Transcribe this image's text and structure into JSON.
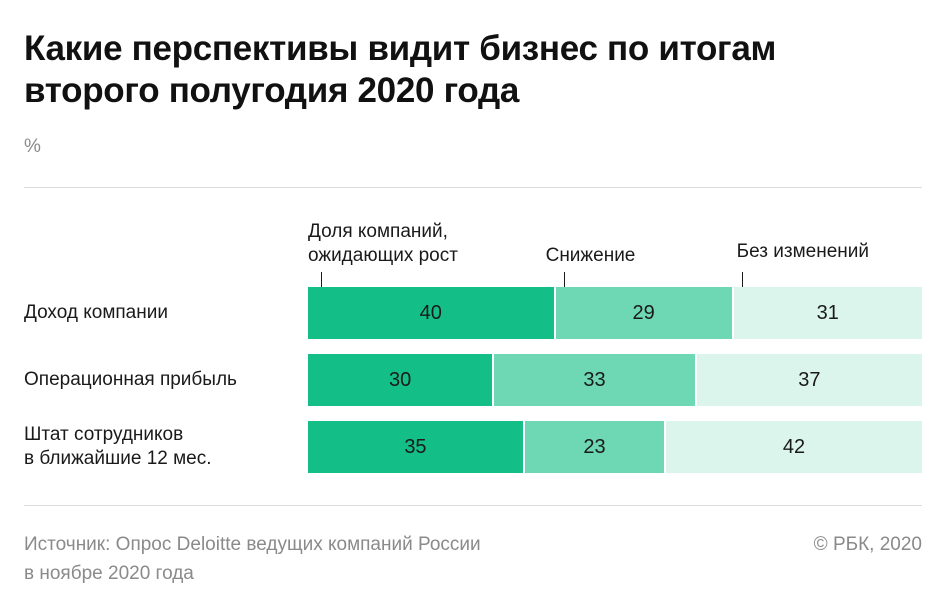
{
  "title_lines": [
    "Какие перспективы видит бизнес по итогам",
    "второго полугодия 2020 года"
  ],
  "unit": "%",
  "footer": {
    "source_lines": [
      "Источник: Опрос Deloitte ведущих компаний России",
      "в ноябре 2020 года"
    ],
    "copyright": "© РБК, 2020"
  },
  "chart_data": {
    "type": "bar",
    "orientation": "horizontal",
    "stacked": true,
    "unit": "%",
    "categories": [
      "Доход компании",
      "Операционная прибыль",
      "Штат сотрудников в ближайшие 12 мес."
    ],
    "category_lines": [
      [
        "Доход компании"
      ],
      [
        "Операционная прибыль"
      ],
      [
        "Штат сотрудников",
        "в ближайшие 12 мес."
      ]
    ],
    "series": [
      {
        "name": "Доля компаний, ожидающих рост",
        "name_lines": [
          "Доля компаний,",
          "ожидающих рост"
        ],
        "values": [
          40,
          30,
          35
        ],
        "color": "#13bf86"
      },
      {
        "name": "Снижение",
        "name_lines": [
          "Снижение"
        ],
        "values": [
          29,
          33,
          23
        ],
        "color": "#6ed8b4"
      },
      {
        "name": "Без изменений",
        "name_lines": [
          "Без изменений"
        ],
        "values": [
          31,
          37,
          42
        ],
        "color": "#dcf5ec"
      }
    ],
    "xlim": [
      0,
      100
    ]
  }
}
